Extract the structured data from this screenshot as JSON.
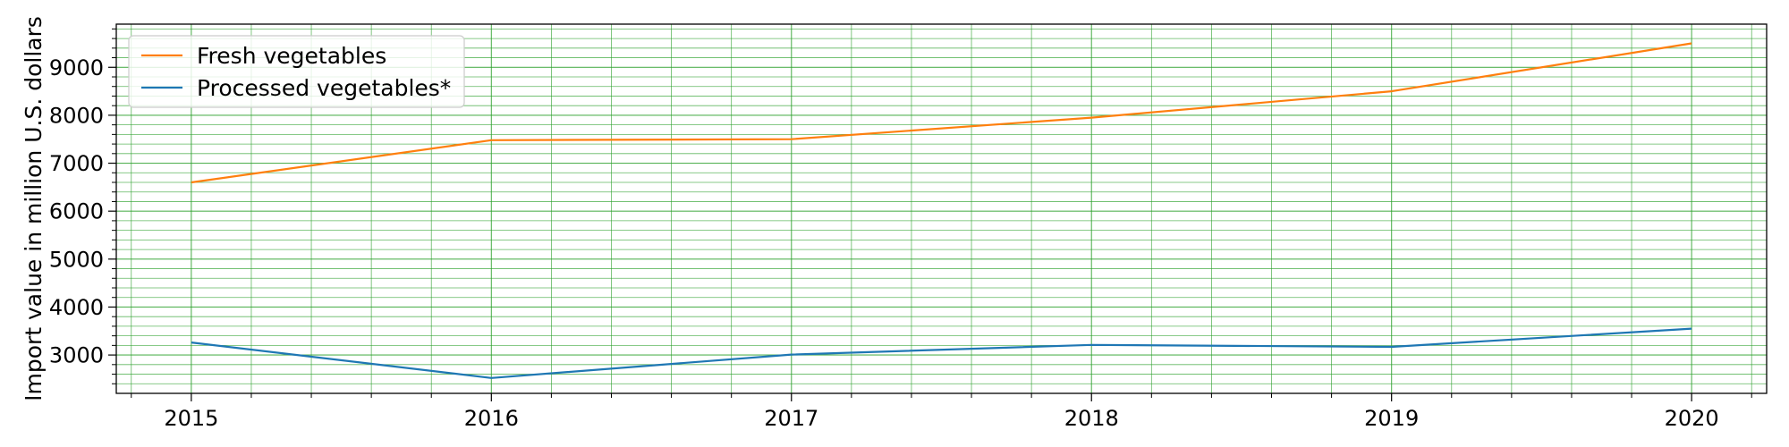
{
  "chart_data": {
    "type": "line",
    "title": "",
    "xlabel": "",
    "ylabel": "Import value in million U.S. dollars",
    "x": [
      2015,
      2016,
      2017,
      2018,
      2019,
      2020
    ],
    "x_tick_labels": [
      "2015",
      "2016",
      "2017",
      "2018",
      "2019",
      "2020"
    ],
    "y_ticks": [
      3000,
      4000,
      5000,
      6000,
      7000,
      8000,
      9000
    ],
    "y_tick_labels": [
      "3000",
      "4000",
      "5000",
      "6000",
      "7000",
      "8000",
      "9000"
    ],
    "xlim": [
      2014.75,
      2020.25
    ],
    "ylim": [
      2200,
      9900
    ],
    "grid": true,
    "grid_color": "#2ca02c",
    "legend_position": "top-left",
    "series": [
      {
        "name": "Fresh vegetables",
        "color": "#ff7f0e",
        "values": [
          6600,
          7480,
          7500,
          7950,
          8500,
          9500
        ]
      },
      {
        "name": "Processed vegetables*",
        "color": "#1f77b4",
        "values": [
          3260,
          2520,
          3010,
          3210,
          3170,
          3550
        ]
      }
    ]
  }
}
